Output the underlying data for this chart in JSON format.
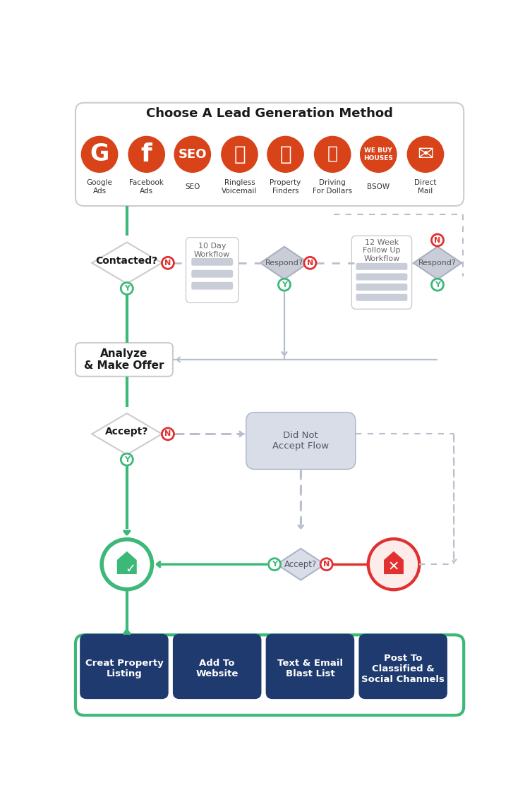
{
  "title": "Choose A Lead Generation Method",
  "bg_color": "#ffffff",
  "border_color": "#cccccc",
  "green_color": "#3cb878",
  "dark_green": "#3cb878",
  "red_color": "#e03030",
  "light_gray": "#d0d5e0",
  "mid_gray": "#c8cdd8",
  "dark_blue": "#1e3a6e",
  "orange_red": "#d9431a",
  "icon_labels": [
    "Google\nAds",
    "Facebook\nAds",
    "SEO",
    "Ringless\nVoicemail",
    "Property\nFinders",
    "Driving\nFor Dollars",
    "BSOW",
    "Direct\nMail"
  ],
  "bottom_labels": [
    "Creat Property\nListing",
    "Add To\nWebsite",
    "Text & Email\nBlast List",
    "Post To\nClassified &\nSocial Channels"
  ]
}
